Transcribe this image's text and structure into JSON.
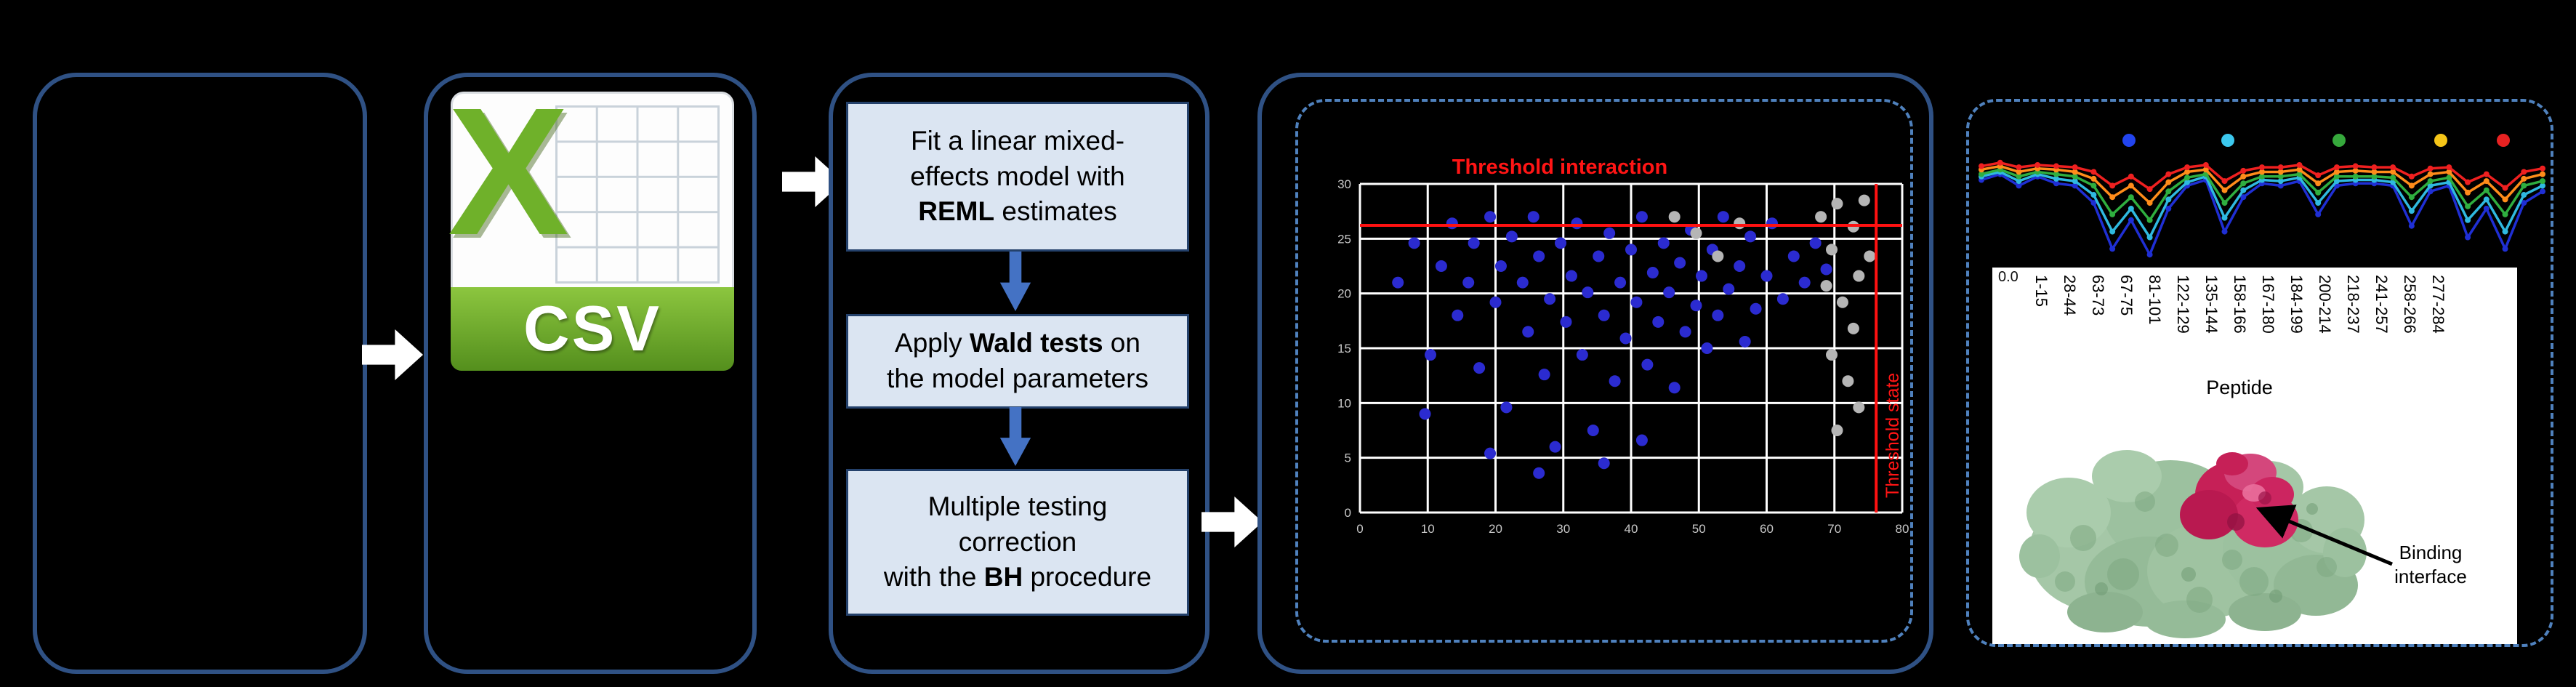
{
  "figure": {
    "csv": {
      "x": "X",
      "label": "CSV"
    },
    "method_boxes": [
      {
        "pre": "Fit a linear mixed-\neffects model with\n",
        "bold": "REML",
        "post": " estimates"
      },
      {
        "pre": "Apply ",
        "bold": "Wald tests",
        "post": " on\nthe model parameters"
      },
      {
        "pre": "Multiple testing\ncorrection\nwith the ",
        "bold": "BH",
        "post": " procedure"
      }
    ],
    "scatter": {
      "title": "Threshold interaction",
      "side_label": "Threshold state"
    },
    "peptide_axis": {
      "labels": [
        "1-15",
        "28-44",
        "63-73",
        "67-75",
        "81-101",
        "122-129",
        "135-144",
        "158-166",
        "167-180",
        "184-199",
        "200-214",
        "218-237",
        "241-257",
        "258-266",
        "277-284"
      ],
      "axis_title": "Peptide",
      "y_zero_label": "0.0"
    },
    "protein": {
      "annotation": "Binding interface"
    }
  },
  "chart_data": [
    {
      "type": "scatter",
      "title": "Threshold interaction",
      "side_label": "Threshold state",
      "grid": true,
      "x_ticks": [
        "0",
        "10",
        "20",
        "30",
        "40",
        "50",
        "60",
        "70",
        "80"
      ],
      "y_ticks": [
        "30",
        "25",
        "20",
        "15",
        "10",
        "5",
        "0"
      ],
      "threshold_color": "#ff1111",
      "threshold_h_frac": 0.126,
      "threshold_v_frac": 0.952,
      "series": [
        {
          "name": "significant",
          "color": "#2b2bd0",
          "points": [
            [
              0.07,
              0.3
            ],
            [
              0.1,
              0.18
            ],
            [
              0.13,
              0.52
            ],
            [
              0.15,
              0.25
            ],
            [
              0.17,
              0.12
            ],
            [
              0.18,
              0.4
            ],
            [
              0.2,
              0.3
            ],
            [
              0.21,
              0.18
            ],
            [
              0.22,
              0.56
            ],
            [
              0.24,
              0.1
            ],
            [
              0.25,
              0.36
            ],
            [
              0.26,
              0.25
            ],
            [
              0.27,
              0.68
            ],
            [
              0.28,
              0.16
            ],
            [
              0.3,
              0.3
            ],
            [
              0.31,
              0.45
            ],
            [
              0.32,
              0.1
            ],
            [
              0.33,
              0.22
            ],
            [
              0.34,
              0.58
            ],
            [
              0.35,
              0.35
            ],
            [
              0.36,
              0.8
            ],
            [
              0.37,
              0.18
            ],
            [
              0.38,
              0.42
            ],
            [
              0.39,
              0.28
            ],
            [
              0.4,
              0.12
            ],
            [
              0.41,
              0.52
            ],
            [
              0.42,
              0.33
            ],
            [
              0.43,
              0.75
            ],
            [
              0.44,
              0.22
            ],
            [
              0.45,
              0.4
            ],
            [
              0.46,
              0.15
            ],
            [
              0.47,
              0.6
            ],
            [
              0.48,
              0.3
            ],
            [
              0.49,
              0.47
            ],
            [
              0.5,
              0.2
            ],
            [
              0.51,
              0.36
            ],
            [
              0.52,
              0.1
            ],
            [
              0.53,
              0.55
            ],
            [
              0.54,
              0.27
            ],
            [
              0.55,
              0.42
            ],
            [
              0.56,
              0.18
            ],
            [
              0.57,
              0.33
            ],
            [
              0.58,
              0.62
            ],
            [
              0.59,
              0.24
            ],
            [
              0.6,
              0.45
            ],
            [
              0.61,
              0.14
            ],
            [
              0.62,
              0.37
            ],
            [
              0.63,
              0.28
            ],
            [
              0.64,
              0.5
            ],
            [
              0.65,
              0.2
            ],
            [
              0.66,
              0.4
            ],
            [
              0.67,
              0.1
            ],
            [
              0.68,
              0.32
            ],
            [
              0.7,
              0.25
            ],
            [
              0.71,
              0.48
            ],
            [
              0.72,
              0.16
            ],
            [
              0.73,
              0.38
            ],
            [
              0.75,
              0.28
            ],
            [
              0.76,
              0.12
            ],
            [
              0.78,
              0.35
            ],
            [
              0.8,
              0.22
            ],
            [
              0.82,
              0.3
            ],
            [
              0.84,
              0.18
            ],
            [
              0.86,
              0.26
            ],
            [
              0.24,
              0.82
            ],
            [
              0.33,
              0.88
            ],
            [
              0.45,
              0.85
            ],
            [
              0.12,
              0.7
            ],
            [
              0.52,
              0.78
            ]
          ]
        },
        {
          "name": "not-significant",
          "color": "#b5b5b5",
          "points": [
            [
              0.88,
              0.06
            ],
            [
              0.91,
              0.13
            ],
            [
              0.87,
              0.2
            ],
            [
              0.92,
              0.28
            ],
            [
              0.89,
              0.36
            ],
            [
              0.91,
              0.44
            ],
            [
              0.87,
              0.52
            ],
            [
              0.9,
              0.6
            ],
            [
              0.92,
              0.68
            ],
            [
              0.88,
              0.75
            ],
            [
              0.85,
              0.1
            ],
            [
              0.86,
              0.31
            ],
            [
              0.62,
              0.15
            ],
            [
              0.66,
              0.22
            ],
            [
              0.7,
              0.12
            ],
            [
              0.58,
              0.1
            ],
            [
              0.93,
              0.05
            ],
            [
              0.94,
              0.22
            ]
          ]
        }
      ]
    },
    {
      "type": "line",
      "name": "deuterium-uptake-per-peptide",
      "colors": [
        "#1f2fd4",
        "#2fb9e0",
        "#2fae3f",
        "#ff8c1a",
        "#ef2020"
      ],
      "legend_dot_colors": [
        "#2244ee",
        "#3cc8ee",
        "#36a93c",
        "#f5c518",
        "#e82222"
      ],
      "legend_dot_x": [
        0.256,
        0.429,
        0.623,
        0.801,
        0.91
      ],
      "series": [
        {
          "name": "series1",
          "values": [
            0.25,
            0.2,
            0.3,
            0.22,
            0.28,
            0.3,
            0.45,
            0.85,
            0.6,
            0.9,
            0.5,
            0.3,
            0.25,
            0.7,
            0.4,
            0.28,
            0.3,
            0.26,
            0.55,
            0.3,
            0.28,
            0.28,
            0.3,
            0.65,
            0.35,
            0.3,
            0.75,
            0.5,
            0.85,
            0.45,
            0.35
          ]
        },
        {
          "name": "series2",
          "values": [
            0.22,
            0.18,
            0.26,
            0.2,
            0.24,
            0.26,
            0.38,
            0.7,
            0.5,
            0.75,
            0.42,
            0.27,
            0.22,
            0.58,
            0.34,
            0.25,
            0.26,
            0.23,
            0.45,
            0.26,
            0.25,
            0.25,
            0.27,
            0.52,
            0.3,
            0.27,
            0.6,
            0.42,
            0.7,
            0.38,
            0.3
          ]
        },
        {
          "name": "series3",
          "values": [
            0.2,
            0.16,
            0.22,
            0.18,
            0.2,
            0.22,
            0.3,
            0.55,
            0.4,
            0.6,
            0.35,
            0.23,
            0.2,
            0.45,
            0.28,
            0.22,
            0.22,
            0.2,
            0.36,
            0.22,
            0.22,
            0.22,
            0.23,
            0.4,
            0.26,
            0.23,
            0.48,
            0.34,
            0.55,
            0.3,
            0.26
          ]
        },
        {
          "name": "series4",
          "values": [
            0.16,
            0.13,
            0.18,
            0.15,
            0.16,
            0.18,
            0.24,
            0.4,
            0.3,
            0.45,
            0.27,
            0.18,
            0.16,
            0.34,
            0.22,
            0.18,
            0.18,
            0.16,
            0.28,
            0.18,
            0.17,
            0.18,
            0.18,
            0.3,
            0.2,
            0.18,
            0.36,
            0.26,
            0.42,
            0.24,
            0.2
          ]
        },
        {
          "name": "series5",
          "values": [
            0.13,
            0.1,
            0.14,
            0.12,
            0.13,
            0.14,
            0.18,
            0.3,
            0.22,
            0.33,
            0.2,
            0.14,
            0.12,
            0.26,
            0.17,
            0.14,
            0.14,
            0.12,
            0.21,
            0.14,
            0.13,
            0.14,
            0.14,
            0.22,
            0.15,
            0.14,
            0.27,
            0.2,
            0.32,
            0.18,
            0.15
          ]
        }
      ]
    }
  ]
}
